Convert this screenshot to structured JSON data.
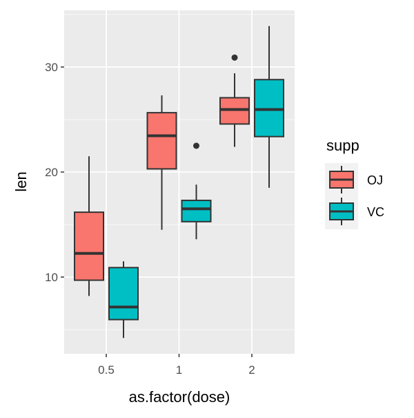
{
  "chart_data": {
    "type": "boxplot",
    "xlabel": "as.factor(dose)",
    "ylabel": "len",
    "categories": [
      "0.5",
      "1",
      "2"
    ],
    "ylim": [
      2.7,
      35.4
    ],
    "yticks": [
      10,
      20,
      30
    ],
    "grid": true,
    "legend": {
      "title": "supp",
      "placement": "right"
    },
    "series": [
      {
        "name": "OJ",
        "color": "#F8766D",
        "boxes": [
          {
            "min": 8.2,
            "q1": 9.7,
            "median": 12.25,
            "q3": 16.175,
            "max": 21.5,
            "outliers": []
          },
          {
            "min": 14.5,
            "q1": 20.3,
            "median": 23.45,
            "q3": 25.65,
            "max": 27.3,
            "outliers": []
          },
          {
            "min": 22.4,
            "q1": 24.575,
            "median": 25.95,
            "q3": 27.075,
            "max": 29.4,
            "outliers": [
              30.9
            ]
          }
        ]
      },
      {
        "name": "VC",
        "color": "#00BFC4",
        "boxes": [
          {
            "min": 4.2,
            "q1": 5.95,
            "median": 7.15,
            "q3": 10.9,
            "max": 11.5,
            "outliers": []
          },
          {
            "min": 13.6,
            "q1": 15.275,
            "median": 16.5,
            "q3": 17.3,
            "max": 18.8,
            "outliers": [
              22.5
            ]
          },
          {
            "min": 18.5,
            "q1": 23.375,
            "median": 25.95,
            "q3": 28.8,
            "max": 33.9,
            "outliers": []
          }
        ]
      }
    ]
  }
}
